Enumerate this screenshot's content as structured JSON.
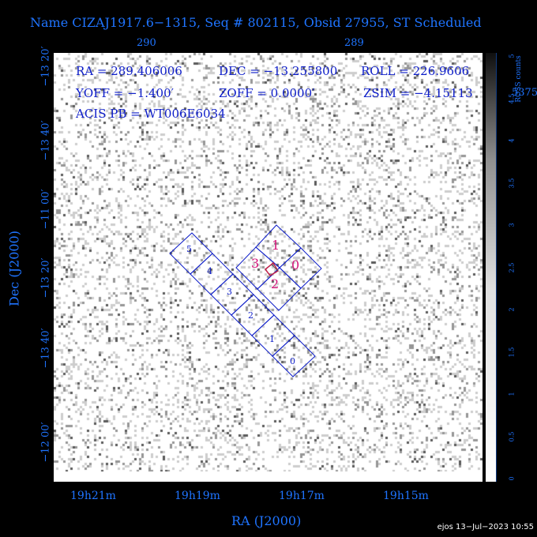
{
  "title": "Name CIZAJ1917.6−1315, Seq # 802115, Obsid 27955, ST Scheduled",
  "top_ticks": [
    "290",
    "289"
  ],
  "bottom_ticks": [
    "19h21m",
    "19h19m",
    "19h17m",
    "19h15m"
  ],
  "x_label": "RA (J2000)",
  "y_label": "Dec (J2000)",
  "y_ticks": [
    "−13 20′",
    "−13 40′",
    "−11 00′",
    "−13 20′",
    "−13 40′",
    "−12 00′"
  ],
  "info": {
    "ra": "RA = 289.406006",
    "dec": "DEC = −13.255800",
    "roll": "ROLL = 226.9606",
    "yoff": "YOFF =  −1.400′",
    "zoff": "ZOFF =  0.0000′",
    "zsim": "ZSIM = −4.15113",
    "acis": "ACIS PB = WT006E6034"
  },
  "colorbar": {
    "title": "ROSS counts",
    "ticks": [
      "0",
      "0.5",
      "1",
      "1.5",
      "2",
      "2.5",
      "3",
      "3.5",
      "4",
      "4.5",
      "5"
    ],
    "extra_label": "5375"
  },
  "chips": {
    "acis_s": [
      "0",
      "1",
      "2",
      "3",
      "4",
      "5"
    ],
    "acis_i": [
      "0",
      "1",
      "2",
      "3"
    ]
  },
  "colors": {
    "axis_text": "#1f74ff",
    "chip_outline": "#0c1cc8",
    "acis_i_labels": "#d4147a"
  },
  "footer": "ejos 13−Jul−2023 10:55"
}
